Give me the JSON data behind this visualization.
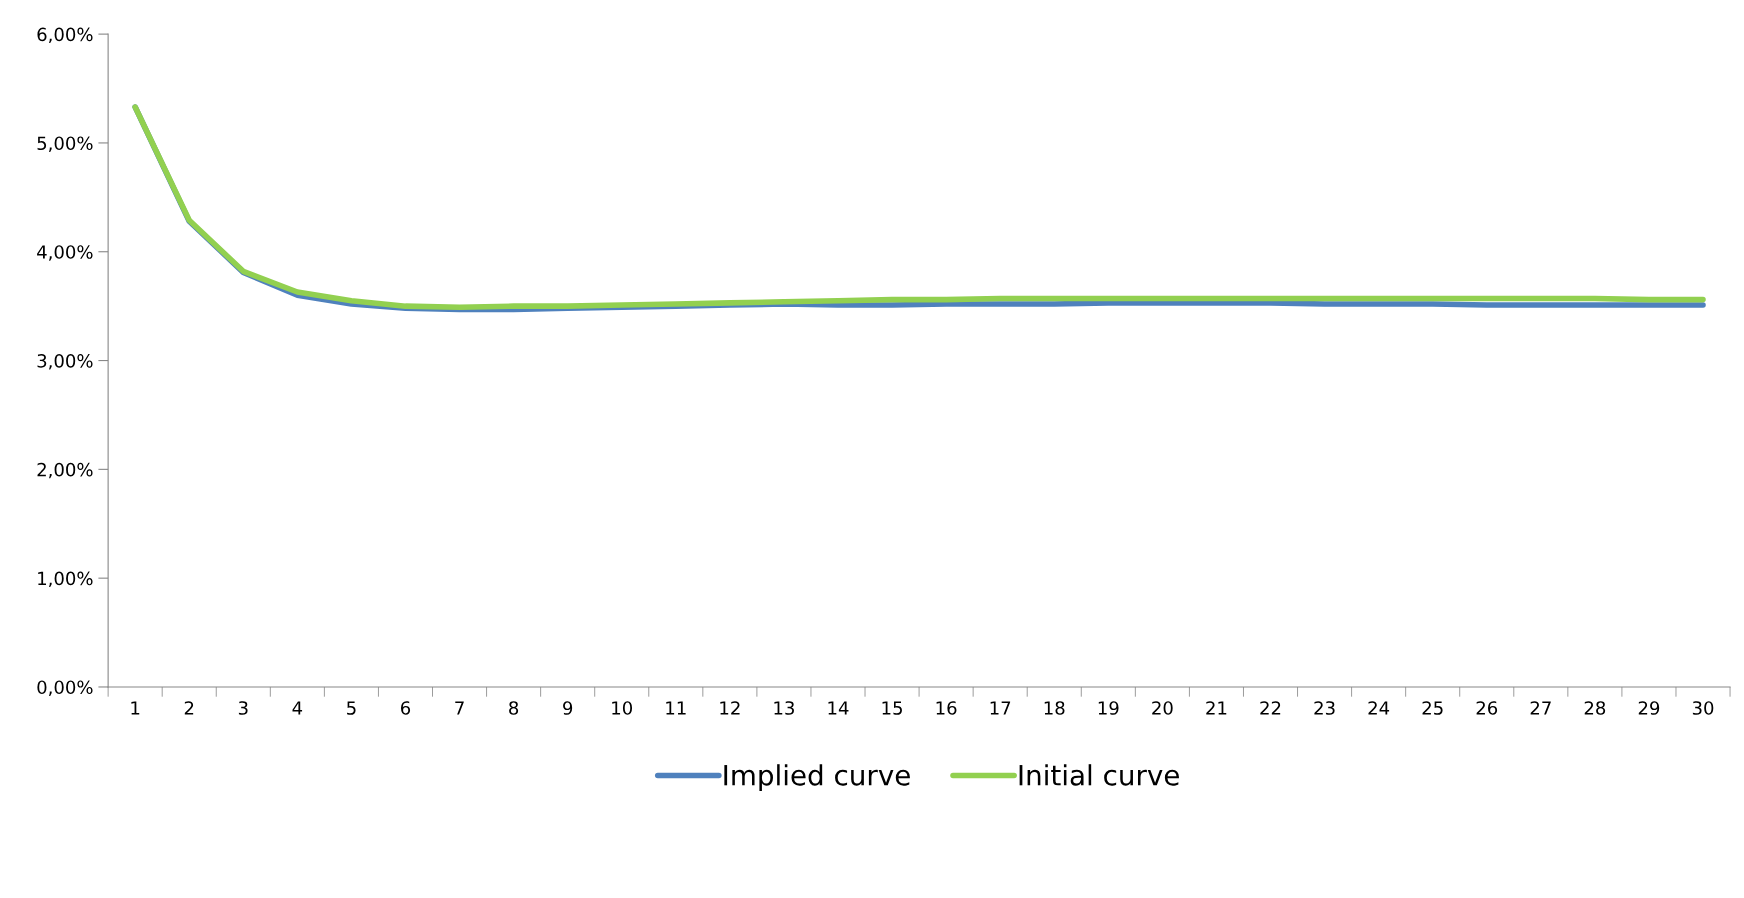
{
  "chart_data": {
    "type": "line",
    "categories": [
      "1",
      "2",
      "3",
      "4",
      "5",
      "6",
      "7",
      "8",
      "9",
      "10",
      "11",
      "12",
      "13",
      "14",
      "15",
      "16",
      "17",
      "18",
      "19",
      "20",
      "21",
      "22",
      "23",
      "24",
      "25",
      "26",
      "27",
      "28",
      "29",
      "30"
    ],
    "series": [
      {
        "name": "Implied curve",
        "color": "#4f81bd",
        "values": [
          5.33,
          4.28,
          3.81,
          3.6,
          3.52,
          3.48,
          3.47,
          3.47,
          3.48,
          3.49,
          3.5,
          3.51,
          3.52,
          3.51,
          3.51,
          3.52,
          3.52,
          3.52,
          3.53,
          3.53,
          3.53,
          3.53,
          3.52,
          3.52,
          3.52,
          3.51,
          3.51,
          3.51,
          3.51,
          3.51
        ]
      },
      {
        "name": "Initial curve",
        "color": "#92d050",
        "values": [
          5.33,
          4.29,
          3.82,
          3.63,
          3.55,
          3.5,
          3.49,
          3.5,
          3.5,
          3.51,
          3.52,
          3.53,
          3.54,
          3.55,
          3.56,
          3.56,
          3.57,
          3.57,
          3.57,
          3.57,
          3.57,
          3.57,
          3.57,
          3.57,
          3.57,
          3.57,
          3.57,
          3.57,
          3.56,
          3.56
        ]
      }
    ],
    "ylim": [
      0,
      6
    ],
    "yticks": [
      {
        "value": 0,
        "label": "0,00%"
      },
      {
        "value": 1,
        "label": "1,00%"
      },
      {
        "value": 2,
        "label": "2,00%"
      },
      {
        "value": 3,
        "label": "3,00%"
      },
      {
        "value": 4,
        "label": "4,00%"
      },
      {
        "value": 5,
        "label": "5,00%"
      },
      {
        "value": 6,
        "label": "6,00%"
      }
    ],
    "grid": false,
    "legend": "bottom",
    "marker": "none",
    "line_style": "solid"
  }
}
